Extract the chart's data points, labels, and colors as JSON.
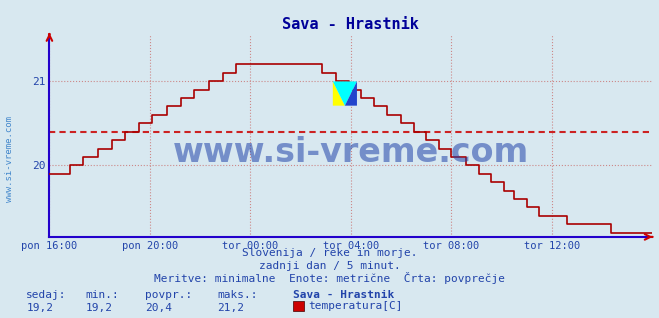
{
  "title": "Sava - Hrastnik",
  "bg_color": "#d8e8f0",
  "plot_bg_color": "#d8e8f0",
  "line_color": "#aa0000",
  "avg_line_color": "#cc2222",
  "avg_value": 20.4,
  "y_min": 19.15,
  "y_max": 21.55,
  "y_ticks": [
    20,
    21
  ],
  "x_labels": [
    "pon 16:00",
    "pon 20:00",
    "tor 00:00",
    "tor 04:00",
    "tor 08:00",
    "tor 12:00"
  ],
  "x_tick_positions": [
    0,
    48,
    96,
    144,
    192,
    240
  ],
  "total_points": 289,
  "watermark": "www.si-vreme.com",
  "subtitle1": "Slovenija / reke in morje.",
  "subtitle2": "zadnji dan / 5 minut.",
  "subtitle3": "Meritve: minimalne  Enote: metrične  Črta: povprečje",
  "label_sedaj": "sedaj:",
  "label_min": "min.:",
  "label_povpr": "povpr.:",
  "label_maks": "maks.:",
  "val_sedaj": "19,2",
  "val_min": "19,2",
  "val_povpr": "20,4",
  "val_maks": "21,2",
  "legend_title": "Sava - Hrastnik",
  "legend_label": "temperatura[C]",
  "legend_color": "#cc0000",
  "title_color": "#000099",
  "text_color": "#2244aa",
  "grid_color_major": "#cc8888",
  "grid_color_minor": "#ddaaaa",
  "axis_color": "#2200cc",
  "watermark_color": "#4466aa",
  "sidebar_text_color": "#4488cc"
}
